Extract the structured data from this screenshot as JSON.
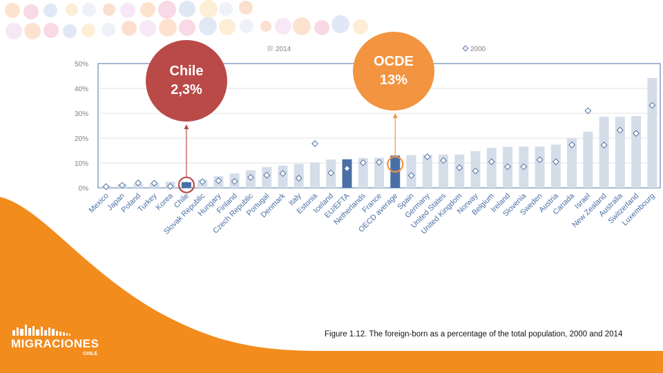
{
  "chart_data": {
    "type": "bar",
    "categories": [
      "Mexico",
      "Japan",
      "Poland",
      "Turkey",
      "Korea",
      "Chile",
      "Slovak Republic",
      "Hungary",
      "Finland",
      "Czech Republic",
      "Portugal",
      "Denmark",
      "Italy",
      "Estonia",
      "Iceland",
      "EU/EFTA",
      "Netherlands",
      "France",
      "OECD average",
      "Spain",
      "Germany",
      "United States",
      "United Kingdom",
      "Norway",
      "Belgium",
      "Ireland",
      "Slovenia",
      "Sweden",
      "Austria",
      "Canada",
      "Israel",
      "New Zealand",
      "Australia",
      "Switzerland",
      "Luxembourg"
    ],
    "series": [
      {
        "name": "2014",
        "kind": "bar",
        "color": "#d5dde9",
        "values": [
          0.8,
          1.6,
          1.6,
          1.8,
          2.5,
          2.3,
          3.3,
          4.7,
          5.8,
          7.1,
          8.4,
          9.0,
          9.6,
          10.2,
          11.4,
          11.5,
          12.0,
          12.1,
          13.0,
          13.2,
          13.3,
          13.4,
          13.4,
          14.8,
          16.1,
          16.5,
          16.6,
          16.6,
          17.4,
          20.0,
          22.6,
          28.6,
          28.6,
          28.9,
          44.2
        ]
      },
      {
        "name": "2000",
        "kind": "marker",
        "color": "#4a6fa5",
        "values": [
          0.5,
          1.0,
          2.0,
          1.9,
          0.6,
          1.2,
          2.5,
          2.9,
          2.6,
          4.2,
          5.1,
          5.8,
          3.9,
          17.8,
          6.0,
          7.8,
          10.1,
          10.3,
          9.5,
          5.0,
          12.5,
          11.0,
          8.1,
          6.8,
          10.5,
          8.5,
          8.5,
          11.3,
          10.5,
          17.3,
          31.0,
          17.2,
          23.2,
          21.9,
          33.2
        ]
      }
    ],
    "highlight_bars": {
      "Chile": "#4a6fa5",
      "EU/EFTA": "#4a6fa5",
      "OECD average": "#4a6fa5"
    },
    "filled_markers": [
      "Chile",
      "OECD average"
    ],
    "yticks": [
      "0%",
      "10%",
      "20%",
      "30%",
      "40%",
      "50%"
    ],
    "ylim": [
      0,
      50
    ],
    "legend_position": "top",
    "circled": [
      "Chile",
      "OECD average"
    ]
  },
  "callouts": {
    "chile": {
      "name": "Chile",
      "value": "2,3%",
      "color": "#b94a48",
      "target": "Chile"
    },
    "oecd": {
      "name": "OCDE",
      "value": "13%",
      "color": "#f29440",
      "target": "OECD average"
    }
  },
  "caption": "Figure 1.12. The foreign-born as a percentage of the total population, 2000 and 2014",
  "logo": {
    "title": "MIGRACIONES",
    "subtitle": "CHILE",
    "color": "#ffffff"
  },
  "theme": {
    "orange": "#f28c1d",
    "axis": "#4a6fa5",
    "grid": "#d9d9d9",
    "tick_text": "#7f7f7f",
    "label_text": "#4a6fa5"
  }
}
